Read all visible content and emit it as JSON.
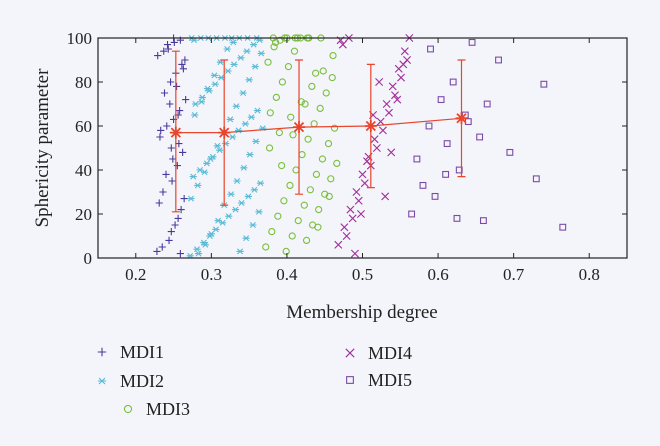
{
  "chart_data": {
    "type": "scatter",
    "xlabel": "Membership degree",
    "ylabel": "Sphericity parameter",
    "xlim": [
      0.15,
      0.85
    ],
    "ylim": [
      0,
      100
    ],
    "xticks": [
      "0.2",
      "0.3",
      "0.4",
      "0.5",
      "0.6",
      "0.7",
      "0.8"
    ],
    "yticks": [
      "0",
      "20",
      "40",
      "60",
      "80",
      "100"
    ],
    "grid": false,
    "legend_position": "bottom",
    "series": [
      {
        "name": "MDI1",
        "marker": "plus",
        "color": "#4b3a9e",
        "x": [
          0.228,
          0.244,
          0.252,
          0.26,
          0.236,
          0.248,
          0.255,
          0.262,
          0.232,
          0.241,
          0.25,
          0.258,
          0.266,
          0.238,
          0.246,
          0.253,
          0.261,
          0.229,
          0.243,
          0.251,
          0.259,
          0.235,
          0.247,
          0.256,
          0.264,
          0.24,
          0.249,
          0.257,
          0.233,
          0.245,
          0.254,
          0.263,
          0.237,
          0.242,
          0.25,
          0.259,
          0.231,
          0.247,
          0.256,
          0.265
        ],
        "y": [
          3,
          8,
          15,
          22,
          30,
          35,
          42,
          48,
          55,
          60,
          63,
          67,
          72,
          75,
          80,
          84,
          88,
          92,
          95,
          98,
          99,
          5,
          12,
          18,
          27,
          38,
          45,
          52,
          58,
          70,
          78,
          86,
          94,
          97,
          100,
          2,
          25,
          50,
          65,
          90
        ]
      },
      {
        "name": "MDI2",
        "marker": "asterisk",
        "color": "#5bbbd6",
        "x": [
          0.272,
          0.281,
          0.29,
          0.298,
          0.306,
          0.315,
          0.323,
          0.332,
          0.34,
          0.349,
          0.357,
          0.365,
          0.276,
          0.285,
          0.294,
          0.302,
          0.311,
          0.319,
          0.328,
          0.336,
          0.345,
          0.353,
          0.361,
          0.279,
          0.288,
          0.297,
          0.305,
          0.313,
          0.322,
          0.33,
          0.339,
          0.347,
          0.356,
          0.364,
          0.274,
          0.283,
          0.292,
          0.3,
          0.309,
          0.317,
          0.326,
          0.334,
          0.343,
          0.351,
          0.359,
          0.368,
          0.278,
          0.287,
          0.295,
          0.304,
          0.312,
          0.321,
          0.329,
          0.338,
          0.346,
          0.355,
          0.363,
          0.273,
          0.282,
          0.291,
          0.299,
          0.308,
          0.316,
          0.325,
          0.333,
          0.342,
          0.35,
          0.358,
          0.366,
          0.277,
          0.286,
          0.296,
          0.307,
          0.318,
          0.327,
          0.337,
          0.348,
          0.36
        ],
        "y": [
          1,
          4,
          7,
          10,
          13,
          16,
          19,
          22,
          25,
          28,
          31,
          34,
          37,
          40,
          43,
          46,
          49,
          52,
          55,
          58,
          61,
          64,
          67,
          70,
          73,
          76,
          79,
          82,
          85,
          88,
          91,
          94,
          97,
          99,
          100,
          2,
          6,
          11,
          17,
          24,
          29,
          35,
          41,
          47,
          53,
          59,
          65,
          71,
          77,
          83,
          89,
          95,
          98,
          3,
          9,
          15,
          21,
          27,
          33,
          39,
          45,
          51,
          57,
          63,
          69,
          75,
          81,
          87,
          93,
          99,
          100,
          100,
          100,
          100,
          100,
          100,
          100,
          100
        ]
      },
      {
        "name": "MDI3",
        "marker": "circle",
        "color": "#79bf3a",
        "x": [
          0.372,
          0.38,
          0.388,
          0.396,
          0.404,
          0.412,
          0.42,
          0.428,
          0.436,
          0.444,
          0.452,
          0.46,
          0.375,
          0.383,
          0.391,
          0.399,
          0.407,
          0.415,
          0.423,
          0.431,
          0.439,
          0.447,
          0.455,
          0.463,
          0.378,
          0.386,
          0.394,
          0.402,
          0.41,
          0.418,
          0.426,
          0.434,
          0.442,
          0.45,
          0.458,
          0.466,
          0.377,
          0.39,
          0.405,
          0.419,
          0.433,
          0.448,
          0.461,
          0.385,
          0.4,
          0.414,
          0.429,
          0.445,
          0.382,
          0.397,
          0.411,
          0.427,
          0.441,
          0.456,
          0.393,
          0.408,
          0.424,
          0.438
        ],
        "y": [
          5,
          12,
          19,
          26,
          33,
          40,
          47,
          54,
          61,
          68,
          75,
          82,
          89,
          96,
          99,
          3,
          10,
          17,
          24,
          31,
          38,
          45,
          52,
          59,
          66,
          73,
          80,
          87,
          94,
          100,
          8,
          15,
          22,
          29,
          36,
          43,
          50,
          57,
          64,
          71,
          78,
          85,
          92,
          98,
          100,
          100,
          100,
          100,
          100,
          100,
          100,
          100,
          14,
          28,
          42,
          56,
          70,
          84
        ]
      },
      {
        "name": "MDI4",
        "marker": "cross",
        "color": "#a0309a",
        "x": [
          0.468,
          0.476,
          0.484,
          0.492,
          0.5,
          0.508,
          0.516,
          0.524,
          0.532,
          0.54,
          0.548,
          0.556,
          0.471,
          0.479,
          0.487,
          0.495,
          0.503,
          0.511,
          0.519,
          0.527,
          0.535,
          0.543,
          0.551,
          0.559,
          0.474,
          0.482,
          0.49,
          0.498,
          0.506,
          0.514,
          0.522,
          0.53,
          0.538,
          0.546,
          0.554,
          0.562
        ],
        "y": [
          6,
          14,
          22,
          30,
          38,
          46,
          54,
          62,
          70,
          78,
          86,
          94,
          99,
          10,
          18,
          26,
          34,
          42,
          50,
          58,
          66,
          74,
          82,
          90,
          97,
          100,
          2,
          20,
          44,
          65,
          80,
          28,
          48,
          72,
          88,
          100
        ]
      },
      {
        "name": "MDI5",
        "marker": "square",
        "color": "#7a4ba6",
        "x": [
          0.565,
          0.572,
          0.58,
          0.588,
          0.596,
          0.604,
          0.612,
          0.62,
          0.628,
          0.636,
          0.645,
          0.655,
          0.665,
          0.68,
          0.695,
          0.73,
          0.74,
          0.765,
          0.59,
          0.61,
          0.625,
          0.64,
          0.66
        ],
        "y": [
          20,
          45,
          33,
          60,
          28,
          72,
          52,
          80,
          40,
          65,
          98,
          55,
          70,
          90,
          48,
          36,
          79,
          14,
          95,
          38,
          18,
          62,
          17
        ]
      }
    ],
    "mean_series": {
      "color": "#e8452c",
      "x": [
        0.253,
        0.317,
        0.416,
        0.511,
        0.631
      ],
      "y": [
        57,
        57,
        59.5,
        60,
        63.5
      ],
      "err_low": [
        21,
        24,
        29,
        32,
        37
      ],
      "err_high": [
        94,
        90,
        90,
        88,
        90
      ]
    }
  }
}
